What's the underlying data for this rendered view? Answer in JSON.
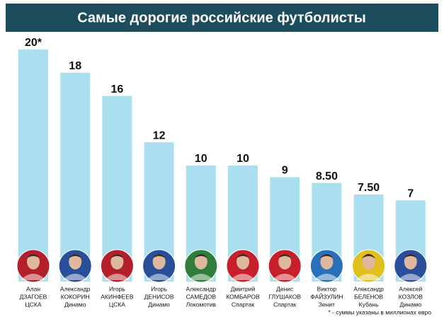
{
  "chart_data": {
    "type": "bar",
    "title": "Самые дорогие российские футболисты",
    "categories": [
      "ДЗАГОЕВ",
      "КОКОРИН",
      "АКИНФЕЕВ",
      "ДЕНИСОВ",
      "САМЕДОВ",
      "КОМБАРОВ",
      "ГЛУШАКОВ",
      "ФАЙЗУЛИН",
      "БЕЛЕНОВ",
      "КОЗЛОВ"
    ],
    "first_names": [
      "Алан",
      "Александр",
      "Игорь",
      "Игорь",
      "Александр",
      "Дмитрий",
      "Денис",
      "Виктор",
      "Александр",
      "Алексей"
    ],
    "clubs": [
      "ЦСКА",
      "Динамо",
      "ЦСКА",
      "Динамо",
      "Локомотив",
      "Спартак",
      "Спартак",
      "Зенит",
      "Кубань",
      "Динамо"
    ],
    "values": [
      20,
      18,
      16,
      12,
      10,
      10,
      9,
      8.5,
      7.5,
      7
    ],
    "value_labels": [
      "20*",
      "18",
      "16",
      "12",
      "10",
      "10",
      "9",
      "8.50",
      "7.50",
      "7"
    ],
    "color": "#aadff0",
    "ylim": [
      0,
      20
    ],
    "footnote": "* - суммы указаны в миллионах евро"
  }
}
